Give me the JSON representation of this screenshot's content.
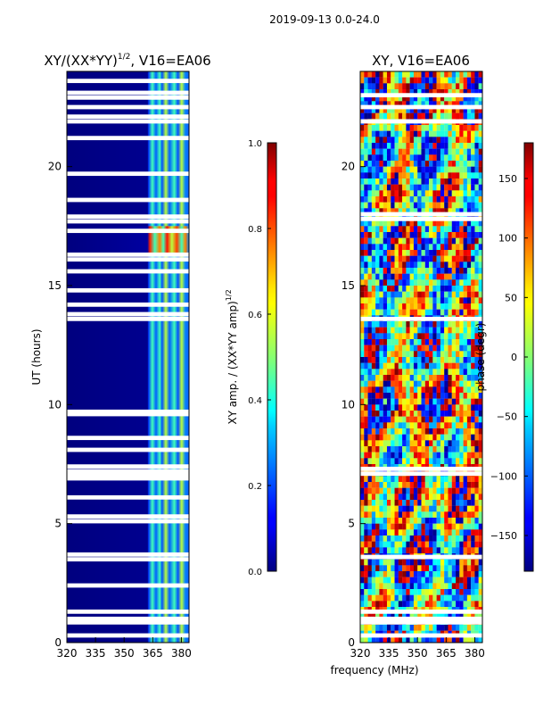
{
  "figure_title": "2019-09-13 0.0-24.0",
  "shared_xlabel": "frequency (MHz)",
  "chart_data": [
    {
      "type": "heatmap",
      "title": "XY/(XX*YY)^{1/2}, V16=EA06",
      "title_main": "XY/(XX*YY)",
      "title_sup": "1/2",
      "title_rest": ", V16=EA06",
      "xlabel": "frequency (MHz)",
      "ylabel": "UT (hours)",
      "xlim": [
        320,
        384
      ],
      "ylim": [
        0,
        24
      ],
      "xticks": [
        320,
        335,
        350,
        365,
        380
      ],
      "yticks": [
        0,
        5,
        10,
        15,
        20
      ],
      "colormap": "jet",
      "colorbar": {
        "label": "XY amp. / (XX*YY amp)^{1/2}",
        "label_main": "XY amp. / (XX*YY amp)",
        "label_sup": "1/2",
        "range": [
          0.0,
          1.0
        ],
        "ticks": [
          "0.0",
          "0.2",
          "0.4",
          "0.6",
          "0.8",
          "1.0"
        ],
        "tick_values": [
          0.0,
          0.2,
          0.4,
          0.6,
          0.8,
          1.0
        ]
      },
      "flagged_hours": [
        0.3,
        0.85,
        1.0,
        1.3,
        2.4,
        3.5,
        3.7,
        5.1,
        5.3,
        6.1,
        6.9,
        7.0,
        7.1,
        7.2,
        7.4,
        8.1,
        8.6,
        9.6,
        9.7,
        13.6,
        13.8,
        14.2,
        14.8,
        15.6,
        16.1,
        16.3,
        17.3,
        17.7,
        17.9,
        18.6,
        19.7,
        21.2,
        21.9,
        22.1,
        22.5,
        22.9,
        23.1,
        23.6
      ],
      "notes": "Low amplitude (~0.05) below 363 MHz; bright channel stripes at ~364, 368, 373, 377 MHz with values 0.3-0.9, strongest near 16 UT."
    },
    {
      "type": "heatmap",
      "title": "XY, V16=EA06",
      "xlabel": "frequency (MHz)",
      "ylabel": "",
      "xlim": [
        320,
        384
      ],
      "ylim": [
        0,
        24
      ],
      "xticks": [
        320,
        335,
        350,
        365,
        380
      ],
      "yticks": [
        0,
        5,
        10,
        15,
        20
      ],
      "colormap": "jet",
      "colorbar": {
        "label": "phase (degr)",
        "range": [
          -180,
          180
        ],
        "ticks": [
          "150",
          "100",
          "50",
          "0",
          "−50",
          "−100",
          "−150"
        ],
        "tick_values": [
          150,
          100,
          50,
          0,
          -50,
          -100,
          -150
        ]
      },
      "flagged_hours": [
        0.3,
        0.85,
        1.0,
        1.3,
        3.6,
        7.1,
        7.3,
        13.6,
        17.8,
        18.0,
        21.9,
        22.5,
        23.0
      ],
      "notes": "Phase varies across full range with banded structure in time."
    }
  ]
}
